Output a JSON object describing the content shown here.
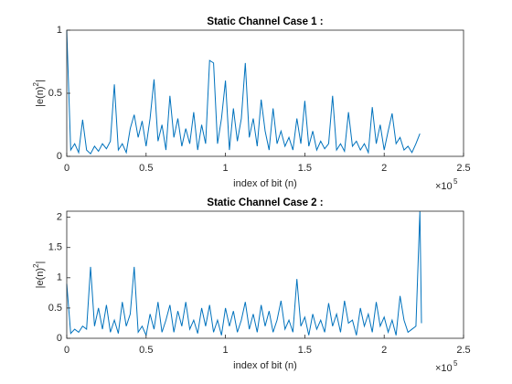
{
  "chart_data": [
    {
      "type": "line",
      "title": "Static Channel Case 1 :",
      "xlabel": "index of bit (n)",
      "ylabel": [
        "|e(n)",
        "2",
        "|"
      ],
      "x_multiplier": "×10",
      "x_multiplier_exponent": "5",
      "xlim": [
        0,
        250000
      ],
      "ylim": [
        0,
        1
      ],
      "xticks": [
        0,
        {
          "value": 50000,
          "label": "0.5"
        },
        {
          "value": 100000,
          "label": "1"
        },
        {
          "value": 150000,
          "label": "1.5"
        },
        {
          "value": 200000,
          "label": "2"
        },
        {
          "value": 250000,
          "label": "2.5"
        }
      ],
      "yticks": [
        0,
        0.5,
        1
      ],
      "series": [
        {
          "color": "#0072bd",
          "x": [
            0,
            2500,
            5000,
            7500,
            10000,
            12500,
            15000,
            17500,
            20000,
            22500,
            25000,
            27500,
            30000,
            32500,
            35000,
            37500,
            40000,
            42500,
            45000,
            47500,
            50000,
            52500,
            55000,
            57500,
            60000,
            62500,
            65000,
            67500,
            70000,
            72500,
            75000,
            77500,
            80000,
            82500,
            85000,
            87500,
            90000,
            92500,
            95000,
            97500,
            100000,
            102500,
            105000,
            107500,
            110000,
            112500,
            115000,
            117500,
            120000,
            122500,
            125000,
            127500,
            130000,
            132500,
            135000,
            137500,
            140000,
            142500,
            145000,
            147500,
            150000,
            152500,
            155000,
            157500,
            160000,
            162500,
            165000,
            167500,
            170000,
            172500,
            175000,
            177500,
            180000,
            182500,
            185000,
            187500,
            190000,
            192500,
            195000,
            197500,
            200000,
            202500,
            205000,
            207500,
            210000,
            212500,
            215000,
            217500,
            220000,
            222500
          ],
          "values": [
            1.0,
            0.05,
            0.1,
            0.03,
            0.29,
            0.05,
            0.02,
            0.08,
            0.04,
            0.1,
            0.06,
            0.12,
            0.57,
            0.05,
            0.1,
            0.03,
            0.22,
            0.33,
            0.15,
            0.28,
            0.08,
            0.3,
            0.61,
            0.12,
            0.25,
            0.05,
            0.48,
            0.15,
            0.3,
            0.08,
            0.22,
            0.1,
            0.35,
            0.05,
            0.25,
            0.1,
            0.76,
            0.74,
            0.1,
            0.3,
            0.6,
            0.05,
            0.38,
            0.12,
            0.3,
            0.74,
            0.15,
            0.3,
            0.08,
            0.45,
            0.2,
            0.05,
            0.38,
            0.1,
            0.2,
            0.08,
            0.15,
            0.05,
            0.3,
            0.1,
            0.44,
            0.08,
            0.2,
            0.05,
            0.12,
            0.06,
            0.1,
            0.48,
            0.05,
            0.1,
            0.04,
            0.35,
            0.08,
            0.12,
            0.05,
            0.1,
            0.03,
            0.39,
            0.1,
            0.25,
            0.05,
            0.2,
            0.34,
            0.1,
            0.15,
            0.05,
            0.08,
            0.03,
            0.1,
            0.18
          ]
        }
      ]
    },
    {
      "type": "line",
      "title": "Static Channel Case 2 :",
      "xlabel": "index of bit (n)",
      "ylabel": [
        "|e(n)",
        "2",
        "|"
      ],
      "x_multiplier": "×10",
      "x_multiplier_exponent": "5",
      "xlim": [
        0,
        250000
      ],
      "ylim": [
        0,
        2.1
      ],
      "xticks": [
        0,
        {
          "value": 50000,
          "label": "0.5"
        },
        {
          "value": 100000,
          "label": "1"
        },
        {
          "value": 150000,
          "label": "1.5"
        },
        {
          "value": 200000,
          "label": "2"
        },
        {
          "value": 250000,
          "label": "2.5"
        }
      ],
      "yticks": [
        0,
        0.5,
        1,
        1.5,
        2
      ],
      "series": [
        {
          "color": "#0072bd",
          "x": [
            0,
            2500,
            5000,
            7500,
            10000,
            12500,
            15000,
            17500,
            20000,
            22500,
            25000,
            27500,
            30000,
            32500,
            35000,
            37500,
            40000,
            42500,
            45000,
            47500,
            50000,
            52500,
            55000,
            57500,
            60000,
            62500,
            65000,
            67500,
            70000,
            72500,
            75000,
            77500,
            80000,
            82500,
            85000,
            87500,
            90000,
            92500,
            95000,
            97500,
            100000,
            102500,
            105000,
            107500,
            110000,
            112500,
            115000,
            117500,
            120000,
            122500,
            125000,
            127500,
            130000,
            132500,
            135000,
            137500,
            140000,
            142500,
            145000,
            147500,
            150000,
            152500,
            155000,
            157500,
            160000,
            162500,
            165000,
            167500,
            170000,
            172500,
            175000,
            177500,
            180000,
            182500,
            185000,
            187500,
            190000,
            192500,
            195000,
            197500,
            200000,
            202500,
            205000,
            207500,
            210000,
            212500,
            215000,
            217500,
            220000,
            222500,
            223500
          ],
          "values": [
            0.9,
            0.08,
            0.15,
            0.1,
            0.2,
            0.15,
            1.18,
            0.2,
            0.5,
            0.15,
            0.55,
            0.1,
            0.3,
            0.08,
            0.6,
            0.2,
            0.4,
            1.18,
            0.1,
            0.2,
            0.05,
            0.4,
            0.15,
            0.6,
            0.1,
            0.3,
            0.55,
            0.1,
            0.45,
            0.2,
            0.6,
            0.15,
            0.3,
            0.08,
            0.5,
            0.2,
            0.55,
            0.1,
            0.3,
            0.05,
            0.5,
            0.2,
            0.45,
            0.1,
            0.3,
            0.6,
            0.15,
            0.4,
            0.1,
            0.55,
            0.2,
            0.45,
            0.1,
            0.3,
            0.62,
            0.15,
            0.3,
            0.1,
            0.98,
            0.2,
            0.35,
            0.05,
            0.4,
            0.15,
            0.3,
            0.1,
            0.58,
            0.2,
            0.4,
            0.1,
            0.62,
            0.25,
            0.3,
            0.05,
            0.5,
            0.2,
            0.4,
            0.1,
            0.6,
            0.2,
            0.35,
            0.1,
            0.3,
            0.05,
            0.7,
            0.3,
            0.1,
            0.15,
            0.2,
            2.1,
            0.25
          ]
        }
      ]
    }
  ]
}
